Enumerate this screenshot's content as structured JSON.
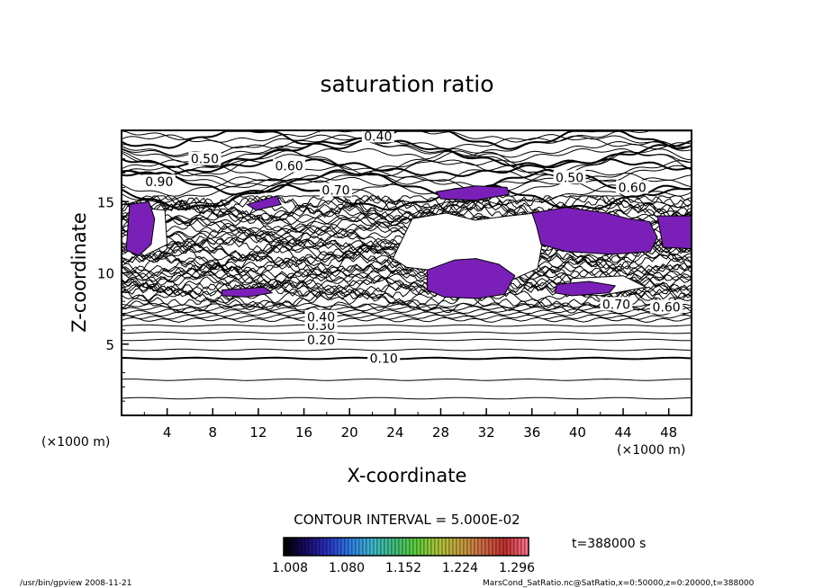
{
  "chart_data": {
    "type": "contour",
    "title": "saturation ratio",
    "xlabel": "X-coordinate",
    "ylabel": "Z-coordinate",
    "x_unit": "(×1000 m)",
    "y_unit": "(×1000 m)",
    "xlim": [
      0,
      50
    ],
    "ylim": [
      0,
      20
    ],
    "x_ticks": [
      4,
      8,
      12,
      16,
      20,
      24,
      28,
      32,
      36,
      40,
      44,
      48
    ],
    "y_ticks": [
      5,
      10,
      15
    ],
    "contour_levels": [
      {
        "label": "0.10",
        "x": 23,
        "z": 4.0
      },
      {
        "label": "0.20",
        "x": 17.5,
        "z": 5.3
      },
      {
        "label": "0.30",
        "x": 17.5,
        "z": 6.3
      },
      {
        "label": "0.40",
        "x": 17.5,
        "z": 6.9
      },
      {
        "label": "0.40",
        "x": 22.5,
        "z": 19.6
      },
      {
        "label": "0.50",
        "x": 7.3,
        "z": 18.0
      },
      {
        "label": "0.50",
        "x": 39.3,
        "z": 16.7
      },
      {
        "label": "0.60",
        "x": 14.7,
        "z": 17.5
      },
      {
        "label": "0.60",
        "x": 44.8,
        "z": 16.0
      },
      {
        "label": "0.60",
        "x": 47.8,
        "z": 7.6
      },
      {
        "label": "0.70",
        "x": 18.8,
        "z": 15.8
      },
      {
        "label": "0.90",
        "x": 3.3,
        "z": 16.4
      },
      {
        "label": "0.70",
        "x": 43.4,
        "z": 7.8
      }
    ],
    "shaded_regions": [
      {
        "label": "above 1.0",
        "points": [
          [
            0.7,
            14.8
          ],
          [
            2.4,
            15.0
          ],
          [
            2.9,
            13.8
          ],
          [
            2.6,
            12.0
          ],
          [
            1.5,
            11.2
          ],
          [
            0.4,
            11.6
          ]
        ]
      },
      {
        "label": "above 1.0",
        "points": [
          [
            26.8,
            10.2
          ],
          [
            29.2,
            10.9
          ],
          [
            31.1,
            11.0
          ],
          [
            33.1,
            10.6
          ],
          [
            34.5,
            9.8
          ],
          [
            33.6,
            8.5
          ],
          [
            31.2,
            8.2
          ],
          [
            28.3,
            8.3
          ],
          [
            26.8,
            8.8
          ]
        ]
      },
      {
        "label": "above 1.0",
        "points": [
          [
            36.0,
            14.2
          ],
          [
            39.0,
            14.6
          ],
          [
            42.5,
            14.2
          ],
          [
            44.5,
            13.8
          ],
          [
            46.3,
            13.6
          ],
          [
            47.0,
            12.5
          ],
          [
            46.4,
            11.5
          ],
          [
            43.0,
            11.3
          ],
          [
            39.0,
            11.5
          ],
          [
            36.8,
            12.0
          ],
          [
            36.4,
            13.3
          ]
        ]
      },
      {
        "label": "above 1.0",
        "points": [
          [
            47.0,
            14.0
          ],
          [
            50.0,
            14.0
          ],
          [
            50.0,
            11.7
          ],
          [
            47.5,
            11.8
          ]
        ]
      },
      {
        "label": "above 1.0",
        "points": [
          [
            38.2,
            9.2
          ],
          [
            41.0,
            9.4
          ],
          [
            43.3,
            9.1
          ],
          [
            42.8,
            8.6
          ],
          [
            39.5,
            8.4
          ],
          [
            38.0,
            8.6
          ]
        ]
      },
      {
        "label": "above 1.0",
        "points": [
          [
            8.8,
            8.8
          ],
          [
            12.5,
            9.0
          ],
          [
            13.2,
            8.6
          ],
          [
            11.0,
            8.3
          ],
          [
            8.8,
            8.4
          ]
        ]
      },
      {
        "label": "above 1.0",
        "points": [
          [
            27.6,
            15.7
          ],
          [
            31.0,
            16.1
          ],
          [
            33.8,
            16.0
          ],
          [
            34.0,
            15.5
          ],
          [
            31.0,
            15.1
          ],
          [
            28.0,
            15.2
          ]
        ]
      },
      {
        "label": "above 1.0",
        "points": [
          [
            11.0,
            14.8
          ],
          [
            13.6,
            15.4
          ],
          [
            14.0,
            14.8
          ],
          [
            11.8,
            14.4
          ]
        ]
      }
    ],
    "contour_interval": "CONTOUR INTERVAL = 5.000E-02",
    "colorbar": {
      "tick_labels": [
        "1.008",
        "1.080",
        "1.152",
        "1.224",
        "1.296"
      ],
      "min": 1.008,
      "max": 1.296,
      "colors": [
        "#000000",
        "#1a0a6e",
        "#2b36c8",
        "#2f82e8",
        "#3fb9c9",
        "#3fbf7a",
        "#5fd03a",
        "#b0c43a",
        "#c6a040",
        "#cf6a44",
        "#c2302e",
        "#ff6f8a"
      ]
    },
    "time_label": "t=388000 s",
    "region_color": "#7a20b8"
  },
  "footer": {
    "left": "/usr/bin/gpview   2008-11-21",
    "right": "MarsCond_SatRatio.nc@SatRatio,x=0:50000,z=0:20000,t=388000"
  }
}
